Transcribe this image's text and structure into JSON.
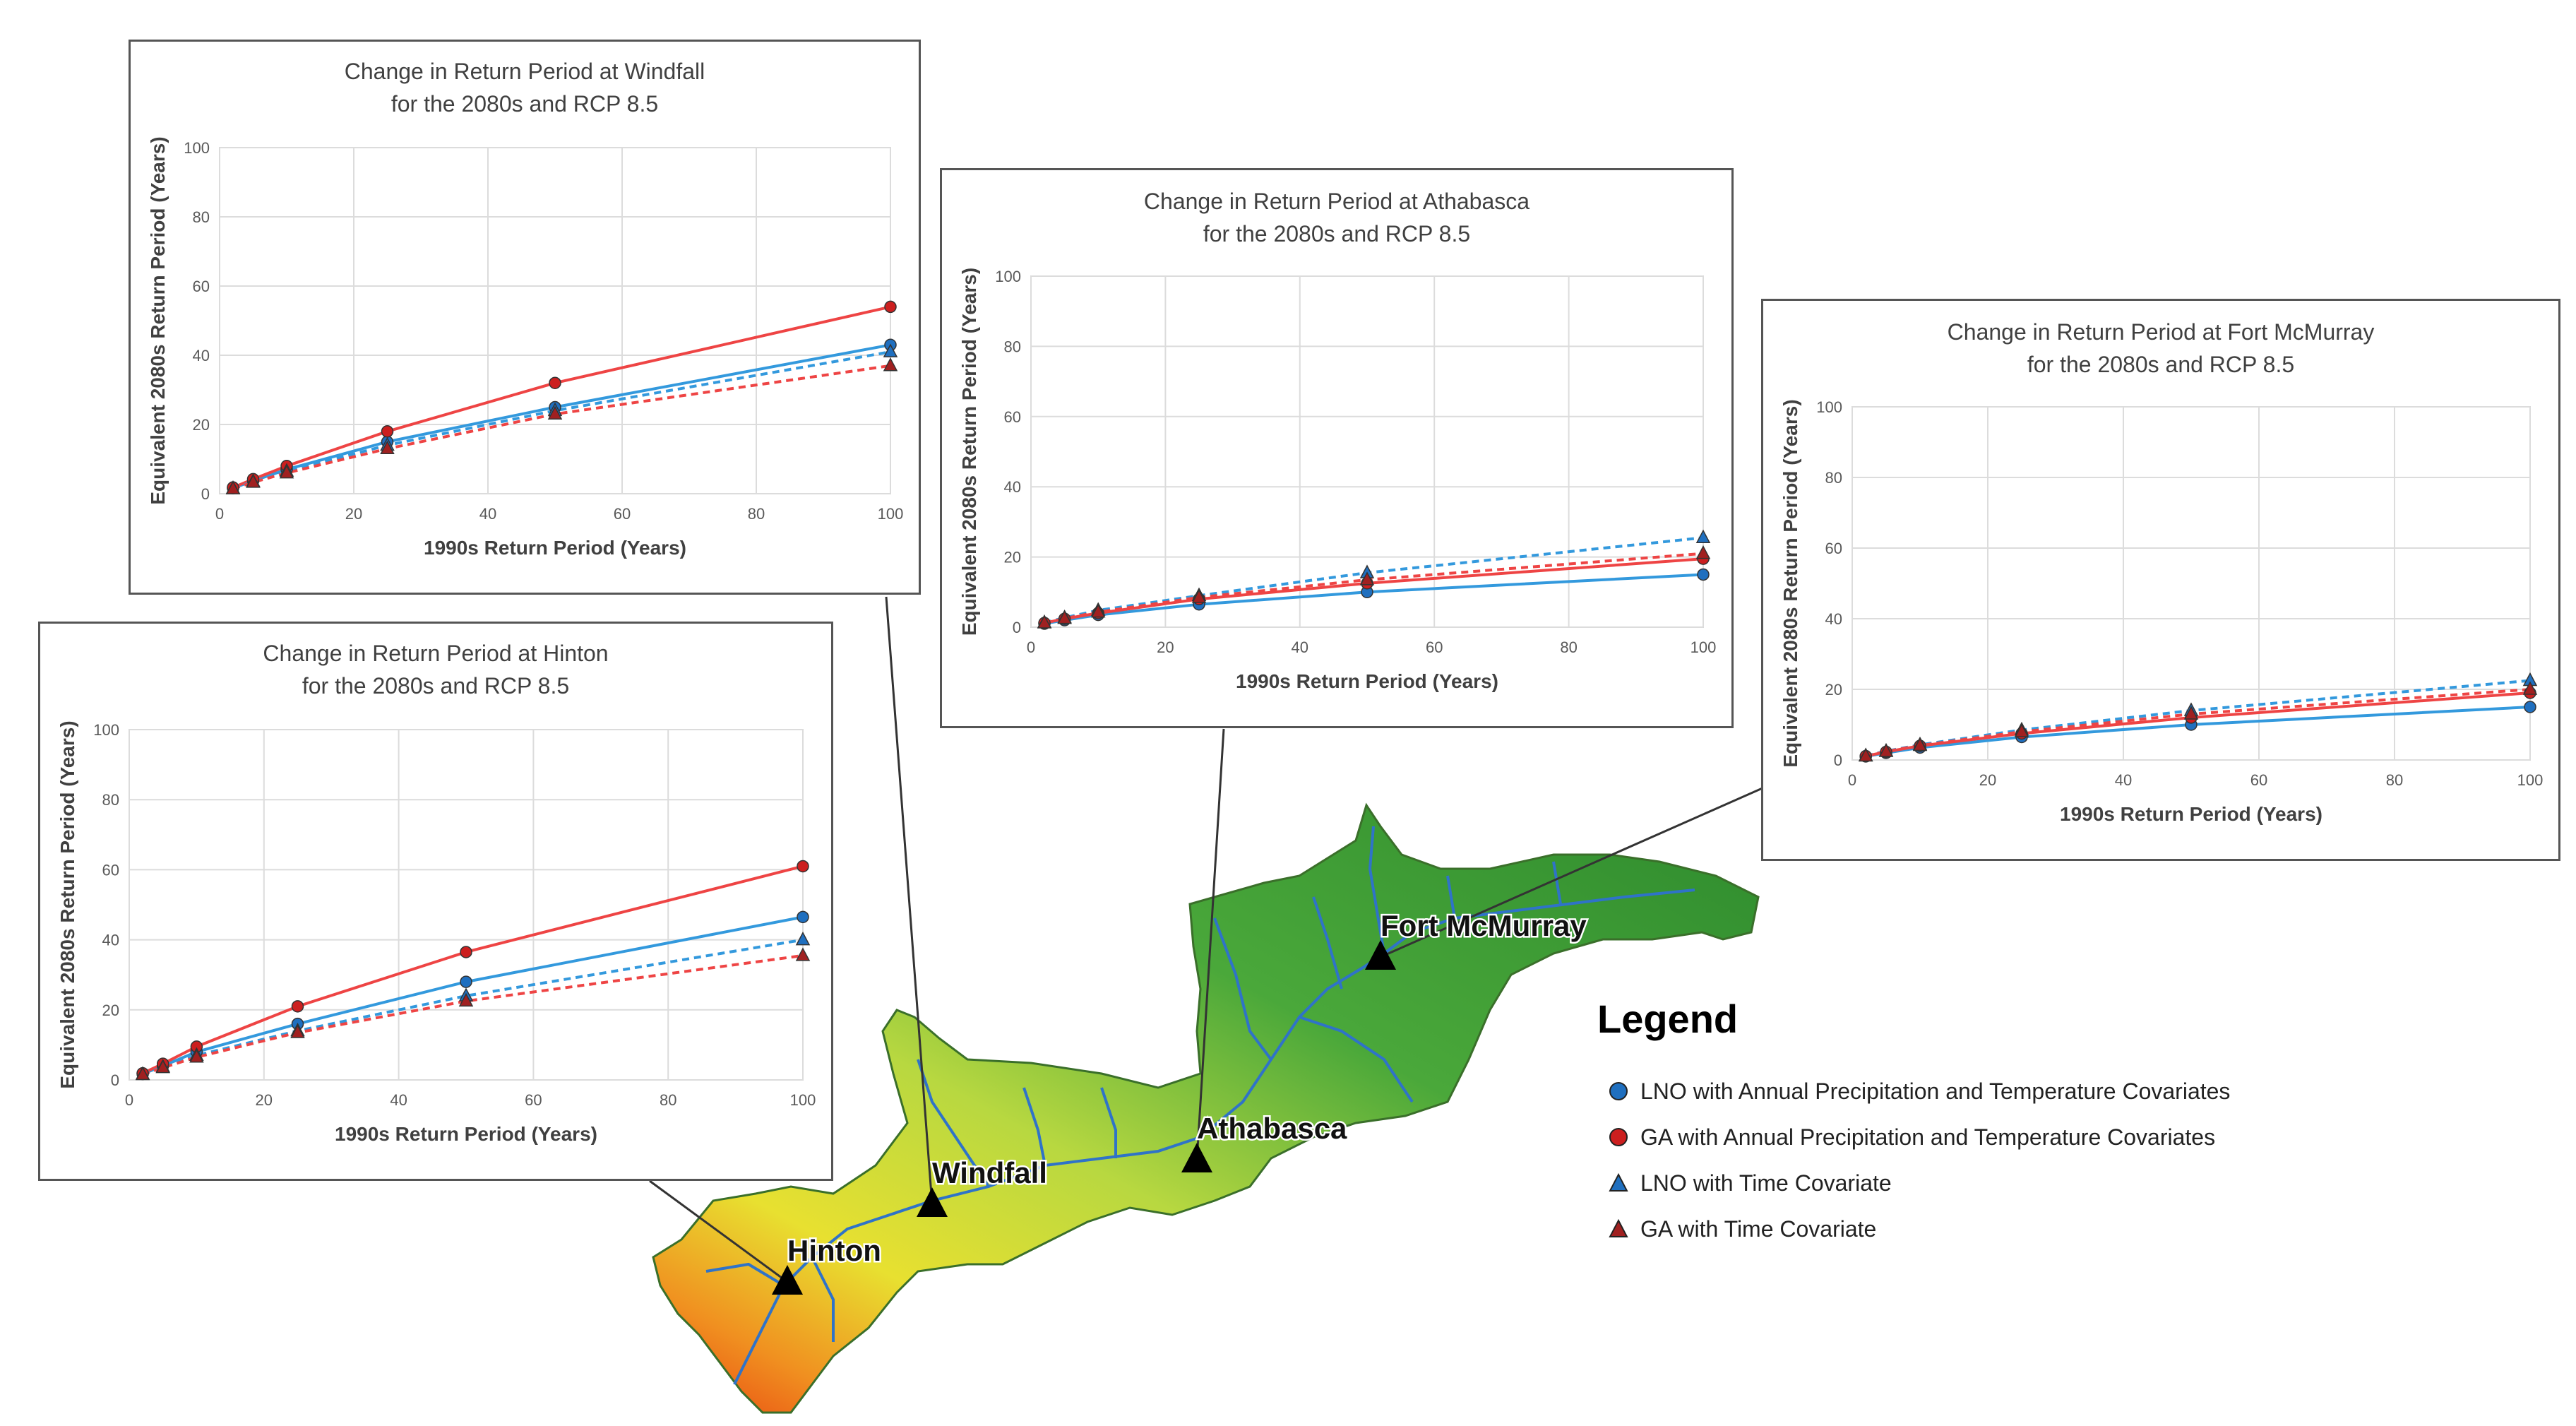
{
  "chart_data": [
    {
      "type": "line",
      "location": "windfall",
      "title": "Change in Return Period at Windfall",
      "subtitle": "for the 2080s and RCP 8.5",
      "xlabel": "1990s Return Period (Years)",
      "ylabel": "Equivalent 2080s Return Period (Years)",
      "xlim": [
        0,
        100
      ],
      "ylim": [
        0,
        100
      ],
      "x_ticks": [
        0,
        20,
        40,
        60,
        80,
        100
      ],
      "y_ticks": [
        0,
        20,
        40,
        60,
        80,
        100
      ],
      "grid": true,
      "x": [
        2,
        5,
        10,
        25,
        50,
        100
      ],
      "series": [
        {
          "key": "lno_pt",
          "values": [
            1.6,
            3.7,
            7.0,
            15.0,
            25.0,
            43.0
          ]
        },
        {
          "key": "ga_pt",
          "values": [
            1.8,
            4.2,
            8.0,
            18.0,
            32.0,
            54.0
          ]
        },
        {
          "key": "lno_time",
          "values": [
            1.5,
            3.5,
            6.5,
            14.0,
            24.0,
            41.0
          ]
        },
        {
          "key": "ga_time",
          "values": [
            1.4,
            3.3,
            6.0,
            13.0,
            23.0,
            37.0
          ]
        }
      ]
    },
    {
      "type": "line",
      "location": "athabasca",
      "title": "Change in Return Period at Athabasca",
      "subtitle": "for the 2080s and RCP 8.5",
      "xlabel": "1990s Return Period (Years)",
      "ylabel": "Equivalent 2080s Return Period (Years)",
      "xlim": [
        0,
        100
      ],
      "ylim": [
        0,
        100
      ],
      "x_ticks": [
        0,
        20,
        40,
        60,
        80,
        100
      ],
      "y_ticks": [
        0,
        20,
        40,
        60,
        80,
        100
      ],
      "grid": true,
      "x": [
        2,
        5,
        10,
        25,
        50,
        100
      ],
      "series": [
        {
          "key": "lno_pt",
          "values": [
            1.0,
            2.0,
            3.5,
            6.5,
            10.0,
            15.0
          ]
        },
        {
          "key": "ga_pt",
          "values": [
            1.2,
            2.4,
            4.0,
            8.0,
            12.5,
            19.5
          ]
        },
        {
          "key": "lno_time",
          "values": [
            1.3,
            2.7,
            4.8,
            9.0,
            15.5,
            25.5
          ]
        },
        {
          "key": "ga_time",
          "values": [
            1.2,
            2.5,
            4.3,
            8.5,
            13.5,
            21.0
          ]
        }
      ]
    },
    {
      "type": "line",
      "location": "fort-mcmurray",
      "title": "Change in Return Period at Fort McMurray",
      "subtitle": "for the 2080s and RCP 8.5",
      "xlabel": "1990s Return Period (Years)",
      "ylabel": "Equivalent 2080s Return Period (Years)",
      "xlim": [
        0,
        100
      ],
      "ylim": [
        0,
        100
      ],
      "x_ticks": [
        0,
        20,
        40,
        60,
        80,
        100
      ],
      "y_ticks": [
        0,
        20,
        40,
        60,
        80,
        100
      ],
      "grid": true,
      "x": [
        2,
        5,
        10,
        25,
        50,
        100
      ],
      "series": [
        {
          "key": "lno_pt",
          "values": [
            1.0,
            2.0,
            3.5,
            6.5,
            10.0,
            15.0
          ]
        },
        {
          "key": "ga_pt",
          "values": [
            1.1,
            2.3,
            4.0,
            7.5,
            12.0,
            19.0
          ]
        },
        {
          "key": "lno_time",
          "values": [
            1.2,
            2.5,
            4.3,
            8.5,
            14.0,
            22.5
          ]
        },
        {
          "key": "ga_time",
          "values": [
            1.1,
            2.4,
            4.1,
            8.0,
            13.0,
            20.0
          ]
        }
      ]
    },
    {
      "type": "line",
      "location": "hinton",
      "title": "Change in Return Period at Hinton",
      "subtitle": "for the 2080s and RCP 8.5",
      "xlabel": "1990s Return Period (Years)",
      "ylabel": "Equivalent 2080s Return Period (Years)",
      "xlim": [
        0,
        100
      ],
      "ylim": [
        0,
        100
      ],
      "x_ticks": [
        0,
        20,
        40,
        60,
        80,
        100
      ],
      "y_ticks": [
        0,
        20,
        40,
        60,
        80,
        100
      ],
      "grid": true,
      "x": [
        2,
        5,
        10,
        25,
        50,
        100
      ],
      "series": [
        {
          "key": "lno_pt",
          "values": [
            1.7,
            4.0,
            8.0,
            16.0,
            28.0,
            46.5
          ]
        },
        {
          "key": "ga_pt",
          "values": [
            1.9,
            4.6,
            9.5,
            21.0,
            36.5,
            61.0
          ]
        },
        {
          "key": "lno_time",
          "values": [
            1.6,
            3.7,
            7.0,
            14.0,
            24.0,
            40.0
          ]
        },
        {
          "key": "ga_time",
          "values": [
            1.5,
            3.5,
            6.5,
            13.5,
            22.5,
            35.5
          ]
        }
      ]
    }
  ],
  "series_styles": {
    "lno_pt": {
      "color": "#3399dd",
      "dash": false,
      "marker": "circle"
    },
    "ga_pt": {
      "color": "#ee4444",
      "dash": false,
      "marker": "circle"
    },
    "lno_time": {
      "color": "#3399dd",
      "dash": true,
      "marker": "triangle"
    },
    "ga_time": {
      "color": "#ee4444",
      "dash": true,
      "marker": "triangle"
    }
  },
  "map": {
    "towns": [
      {
        "id": "fort-mcmurray",
        "label": "Fort McMurray"
      },
      {
        "id": "athabasca",
        "label": "Athabasca"
      },
      {
        "id": "windfall",
        "label": "Windfall"
      },
      {
        "id": "hinton",
        "label": "Hinton"
      }
    ],
    "colors": {
      "low": "#2e8b2e",
      "mid": "#b8d840",
      "high": "#e84010",
      "rivers": "#2f73c8"
    }
  },
  "legend": {
    "title": "Legend",
    "items": [
      {
        "label": "LNO with Annual Precipitation and Temperature Covariates",
        "marker": "circle",
        "color": "#1f6fbf"
      },
      {
        "label": "GA with Annual Precipitation and Temperature Covariates",
        "marker": "circle",
        "color": "#cc1f1f"
      },
      {
        "label": "LNO with Time Covariate",
        "marker": "triangle",
        "color": "#1f6fbf"
      },
      {
        "label": "GA with Time Covariate",
        "marker": "triangle",
        "color": "#a02020"
      }
    ]
  }
}
